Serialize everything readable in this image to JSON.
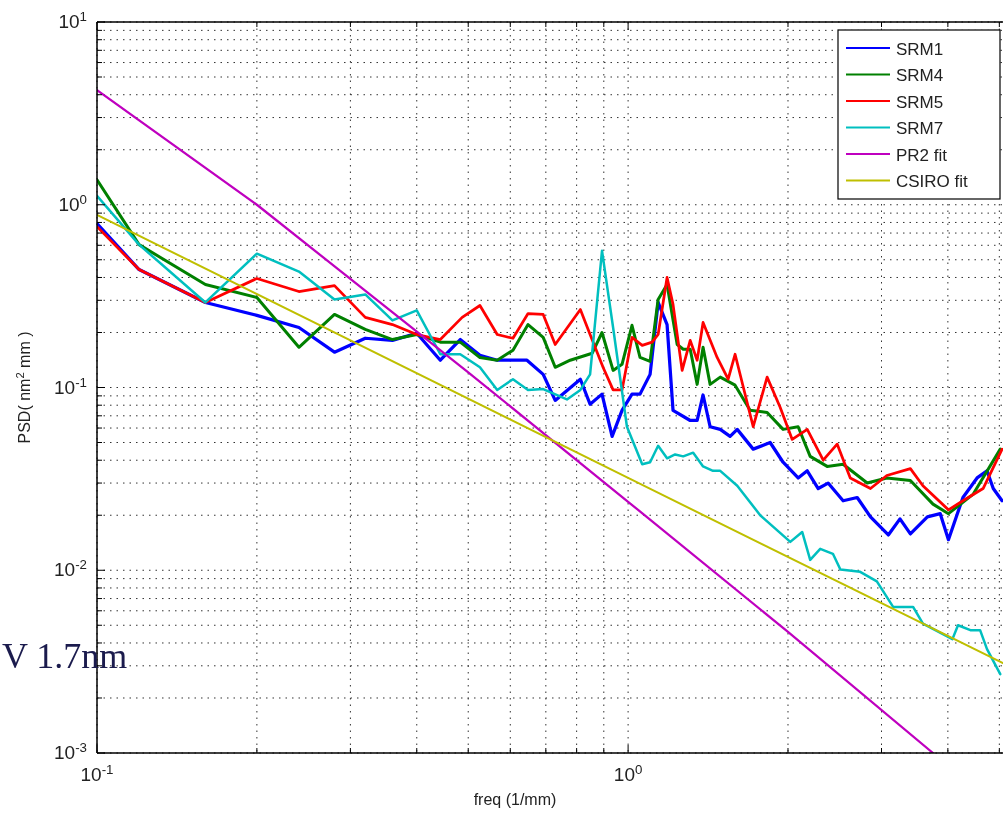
{
  "chart_data": {
    "type": "line",
    "xlabel": "freq (1/mm)",
    "ylabel": "PSD( nm$^{2}$ mm )",
    "log": "xy",
    "grid": true,
    "legend": "top right",
    "xlim": [
      0.1,
      5.08
    ],
    "ylim": [
      0.001,
      10
    ],
    "xticks": [
      {
        "value": 0.1,
        "label": "10$^{-1}$"
      },
      {
        "value": 0.2,
        "label": null
      },
      {
        "value": 0.3,
        "label": null
      },
      {
        "value": 0.4,
        "label": null
      },
      {
        "value": 0.5,
        "label": null
      },
      {
        "value": 0.6,
        "label": null
      },
      {
        "value": 0.7,
        "label": null
      },
      {
        "value": 0.8,
        "label": null
      },
      {
        "value": 0.9,
        "label": null
      },
      {
        "value": 1,
        "label": "10$^{0}$"
      },
      {
        "value": 2,
        "label": null
      },
      {
        "value": 3,
        "label": null
      },
      {
        "value": 4,
        "label": null
      },
      {
        "value": 5,
        "label": null
      }
    ],
    "yticks": [
      {
        "value": 0.001,
        "label": "10$^{-3}$"
      },
      {
        "value": 0.002,
        "label": null
      },
      {
        "value": 0.003,
        "label": null
      },
      {
        "value": 0.004,
        "label": null
      },
      {
        "value": 0.005,
        "label": null
      },
      {
        "value": 0.006,
        "label": null
      },
      {
        "value": 0.007,
        "label": null
      },
      {
        "value": 0.008,
        "label": null
      },
      {
        "value": 0.009,
        "label": null
      },
      {
        "value": 0.01,
        "label": "10$^{-2}$"
      },
      {
        "value": 0.02,
        "label": null
      },
      {
        "value": 0.03,
        "label": null
      },
      {
        "value": 0.04,
        "label": null
      },
      {
        "value": 0.05,
        "label": null
      },
      {
        "value": 0.06,
        "label": null
      },
      {
        "value": 0.07,
        "label": null
      },
      {
        "value": 0.08,
        "label": null
      },
      {
        "value": 0.09,
        "label": null
      },
      {
        "value": 0.1,
        "label": "10$^{-1}$"
      },
      {
        "value": 0.2,
        "label": null
      },
      {
        "value": 0.3,
        "label": null
      },
      {
        "value": 0.4,
        "label": null
      },
      {
        "value": 0.5,
        "label": null
      },
      {
        "value": 0.6,
        "label": null
      },
      {
        "value": 0.7,
        "label": null
      },
      {
        "value": 0.8,
        "label": null
      },
      {
        "value": 0.9,
        "label": null
      },
      {
        "value": 1,
        "label": "10$^{0}$"
      },
      {
        "value": 2,
        "label": null
      },
      {
        "value": 3,
        "label": null
      },
      {
        "value": 4,
        "label": null
      },
      {
        "value": 5,
        "label": null
      },
      {
        "value": 6,
        "label": null
      },
      {
        "value": 7,
        "label": null
      },
      {
        "value": 8,
        "label": null
      },
      {
        "value": 9,
        "label": null
      },
      {
        "value": 10,
        "label": "10$^{1}$"
      }
    ],
    "annotations": [
      "V 1.7nm"
    ],
    "series": [
      {
        "name": "SRM1",
        "color": "#0000ff",
        "x": [
          0.1,
          0.12,
          0.16,
          0.2,
          0.24,
          0.28,
          0.32,
          0.36,
          0.4,
          0.443,
          0.483,
          0.526,
          0.567,
          0.645,
          0.692,
          0.729,
          0.813,
          0.848,
          0.893,
          0.933,
          0.974,
          1.017,
          1.053,
          1.1,
          1.139,
          1.184,
          1.215,
          1.309,
          1.349,
          1.384,
          1.427,
          1.491,
          1.556,
          1.605,
          1.72,
          1.851,
          1.958,
          2.09,
          2.174,
          2.28,
          2.38,
          2.54,
          2.7,
          2.86,
          3.09,
          3.25,
          3.4,
          3.66,
          3.87,
          4.01,
          4.27,
          4.54,
          4.74,
          4.87,
          5.06
        ],
        "values": [
          0.788,
          0.442,
          0.292,
          0.248,
          0.213,
          0.156,
          0.186,
          0.181,
          0.198,
          0.141,
          0.183,
          0.15,
          0.141,
          0.141,
          0.118,
          0.085,
          0.111,
          0.081,
          0.092,
          0.054,
          0.075,
          0.092,
          0.092,
          0.118,
          0.292,
          0.221,
          0.075,
          0.066,
          0.066,
          0.091,
          0.061,
          0.059,
          0.054,
          0.059,
          0.046,
          0.05,
          0.039,
          0.032,
          0.035,
          0.028,
          0.03,
          0.024,
          0.025,
          0.0196,
          0.0156,
          0.0191,
          0.0158,
          0.0196,
          0.0204,
          0.0147,
          0.025,
          0.032,
          0.035,
          0.028,
          0.024
        ]
      },
      {
        "name": "SRM4",
        "color": "#008000",
        "x": [
          0.1,
          0.12,
          0.16,
          0.2,
          0.24,
          0.28,
          0.32,
          0.36,
          0.4,
          0.443,
          0.483,
          0.526,
          0.567,
          0.607,
          0.648,
          0.692,
          0.729,
          0.778,
          0.856,
          0.893,
          0.937,
          0.974,
          1.017,
          1.053,
          1.1,
          1.139,
          1.184,
          1.237,
          1.27,
          1.309,
          1.349,
          1.384,
          1.427,
          1.491,
          1.59,
          1.697,
          1.827,
          1.958,
          2.09,
          2.202,
          2.37,
          2.54,
          2.82,
          3.07,
          3.4,
          3.75,
          4.01,
          4.46,
          5.02
        ],
        "values": [
          1.37,
          0.605,
          0.366,
          0.311,
          0.166,
          0.251,
          0.208,
          0.183,
          0.195,
          0.177,
          0.177,
          0.146,
          0.141,
          0.16,
          0.221,
          0.188,
          0.129,
          0.141,
          0.154,
          0.2,
          0.124,
          0.134,
          0.219,
          0.146,
          0.139,
          0.303,
          0.366,
          0.172,
          0.162,
          0.162,
          0.104,
          0.166,
          0.104,
          0.114,
          0.103,
          0.075,
          0.073,
          0.059,
          0.061,
          0.042,
          0.037,
          0.038,
          0.03,
          0.032,
          0.031,
          0.023,
          0.0204,
          0.026,
          0.046
        ]
      },
      {
        "name": "SRM5",
        "color": "#ff0000",
        "x": [
          0.1,
          0.12,
          0.16,
          0.2,
          0.24,
          0.28,
          0.32,
          0.36,
          0.4,
          0.443,
          0.487,
          0.526,
          0.567,
          0.607,
          0.648,
          0.692,
          0.729,
          0.813,
          0.848,
          0.897,
          0.937,
          0.974,
          1.017,
          1.063,
          1.11,
          1.139,
          1.184,
          1.215,
          1.264,
          1.309,
          1.349,
          1.384,
          1.471,
          1.543,
          1.59,
          1.72,
          1.827,
          1.933,
          2.037,
          2.174,
          2.33,
          2.475,
          2.62,
          2.86,
          3.07,
          3.4,
          3.59,
          4.01,
          4.27,
          4.66,
          5.06
        ],
        "values": [
          0.759,
          0.442,
          0.292,
          0.395,
          0.335,
          0.361,
          0.242,
          0.221,
          0.195,
          0.183,
          0.242,
          0.281,
          0.195,
          0.186,
          0.254,
          0.251,
          0.172,
          0.267,
          0.195,
          0.129,
          0.097,
          0.097,
          0.188,
          0.17,
          0.177,
          0.195,
          0.4,
          0.285,
          0.124,
          0.181,
          0.141,
          0.227,
          0.146,
          0.111,
          0.152,
          0.061,
          0.114,
          0.078,
          0.052,
          0.059,
          0.04,
          0.049,
          0.032,
          0.028,
          0.033,
          0.036,
          0.029,
          0.0214,
          0.024,
          0.028,
          0.046
        ]
      },
      {
        "name": "SRM7",
        "color": "#00bfbf",
        "x": [
          0.1,
          0.12,
          0.16,
          0.2,
          0.24,
          0.28,
          0.32,
          0.36,
          0.4,
          0.443,
          0.483,
          0.526,
          0.567,
          0.607,
          0.648,
          0.692,
          0.767,
          0.813,
          0.848,
          0.893,
          0.937,
          0.995,
          1.063,
          1.1,
          1.139,
          1.184,
          1.226,
          1.27,
          1.326,
          1.384,
          1.445,
          1.491,
          1.605,
          1.773,
          2.02,
          2.127,
          2.202,
          2.3,
          2.43,
          2.51,
          2.735,
          2.94,
          3.155,
          3.44,
          3.59,
          4.08,
          4.18,
          4.41,
          4.6,
          4.74,
          5.02
        ],
        "values": [
          1.12,
          0.605,
          0.292,
          0.54,
          0.431,
          0.303,
          0.323,
          0.233,
          0.264,
          0.152,
          0.152,
          0.129,
          0.097,
          0.111,
          0.097,
          0.098,
          0.086,
          0.097,
          0.118,
          0.56,
          0.213,
          0.061,
          0.038,
          0.039,
          0.048,
          0.041,
          0.043,
          0.042,
          0.044,
          0.037,
          0.035,
          0.035,
          0.029,
          0.02,
          0.0143,
          0.0162,
          0.0114,
          0.0131,
          0.0123,
          0.0101,
          0.0098,
          0.0087,
          0.0063,
          0.0063,
          0.0051,
          0.0042,
          0.005,
          0.0047,
          0.0047,
          0.0037,
          0.0027
        ]
      },
      {
        "name": "PR2 fit",
        "color": "#bf00bf",
        "x": [
          0.1,
          0.2,
          0.5,
          1,
          2,
          3.75
        ],
        "values": [
          4.24,
          1.0,
          0.121,
          0.0237,
          0.0046,
          0.001
        ]
      },
      {
        "name": "CSIRO fit",
        "color": "#bfbf00",
        "x": [
          0.1,
          1,
          5.08
        ],
        "values": [
          0.88,
          0.032,
          0.0031
        ]
      }
    ]
  }
}
